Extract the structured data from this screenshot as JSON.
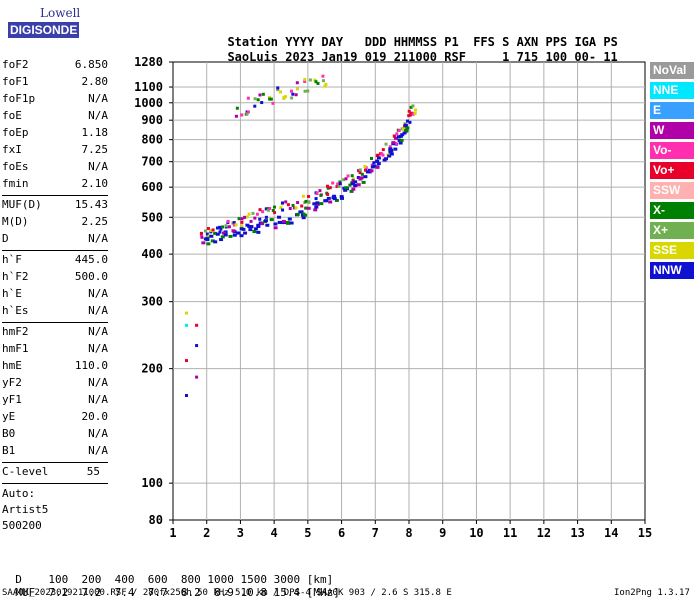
{
  "logo": {
    "line1": "Lowell",
    "line2": "DIGISONDE"
  },
  "header": {
    "labels": [
      "Station",
      "YYYY",
      "DAY",
      "DDD",
      "HHMMSS",
      "P1",
      "FFS",
      "S",
      "AXN",
      "PPS",
      "IGA",
      "PS"
    ],
    "values": [
      "SaoLuis",
      "2023",
      "Jan19",
      "019",
      "211000",
      "RSF",
      "1",
      "715",
      "100",
      "00-",
      "11"
    ]
  },
  "params_group1": [
    {
      "k": "foF2",
      "v": "6.850"
    },
    {
      "k": "foF1",
      "v": "2.80"
    },
    {
      "k": "foF1p",
      "v": "N/A"
    },
    {
      "k": "foE",
      "v": "N/A"
    },
    {
      "k": "foEp",
      "v": "1.18"
    },
    {
      "k": "fxI",
      "v": "7.25"
    },
    {
      "k": "foEs",
      "v": "N/A"
    },
    {
      "k": "fmin",
      "v": "2.10"
    }
  ],
  "params_group2": [
    {
      "k": "MUF(D)",
      "v": "15.43"
    },
    {
      "k": "M(D)",
      "v": "2.25"
    },
    {
      "k": "D",
      "v": "N/A"
    }
  ],
  "params_group3": [
    {
      "k": "h`F",
      "v": "445.0"
    },
    {
      "k": "h`F2",
      "v": "500.0"
    },
    {
      "k": "h`E",
      "v": "N/A"
    },
    {
      "k": "h`Es",
      "v": "N/A"
    }
  ],
  "params_group4": [
    {
      "k": "hmF2",
      "v": "N/A"
    },
    {
      "k": "hmF1",
      "v": "N/A"
    },
    {
      "k": "hmE",
      "v": "110.0"
    },
    {
      "k": "yF2",
      "v": "N/A"
    },
    {
      "k": "yF1",
      "v": "N/A"
    },
    {
      "k": "yE",
      "v": "20.0"
    },
    {
      "k": "B0",
      "v": "N/A"
    },
    {
      "k": "B1",
      "v": "N/A"
    }
  ],
  "clevel": {
    "k": "C-level",
    "v": "55"
  },
  "auto": [
    "Auto:",
    "Artist5",
    "500200"
  ],
  "legend": [
    {
      "label": "NoVal",
      "color": "#9a9a9a"
    },
    {
      "label": "NNE",
      "color": "#00e8ff"
    },
    {
      "label": "E",
      "color": "#3aa0ff"
    },
    {
      "label": "W",
      "color": "#b000a8"
    },
    {
      "label": "Vo-",
      "color": "#ff2fb0"
    },
    {
      "label": "Vo+",
      "color": "#e8002a"
    },
    {
      "label": "SSW",
      "color": "#ffb0b0"
    },
    {
      "label": "X-",
      "color": "#008000"
    },
    {
      "label": "X+",
      "color": "#70b050"
    },
    {
      "label": "SSE",
      "color": "#d8d800"
    },
    {
      "label": "NNW",
      "color": "#1010d0"
    }
  ],
  "bottom_table": {
    "row1_label": "D",
    "row1_values": [
      "100",
      "200",
      "400",
      "600",
      "800",
      "1000",
      "1500",
      "3000"
    ],
    "row1_unit": "[km]",
    "row2_label": "MUF",
    "row2_values": [
      "7.2",
      "7.2",
      "7.4",
      "7.7",
      "8.2",
      "8.9",
      "10.8",
      "15.4"
    ],
    "row2_unit": "[MHz]"
  },
  "footer_left": "SAA0K_2023019211000.RSF / 280fx256h 50 kHz 5.0 km / DPS-4 SAA0K 903 / 2.6 S 315.8 E",
  "footer_right": "Ion2Png 1.3.17",
  "chart_data": {
    "type": "scatter",
    "title": "",
    "xlabel": "",
    "ylabel": "",
    "xlim": [
      1,
      15
    ],
    "ylim": [
      80,
      1280
    ],
    "y_scale": "log",
    "grid": true,
    "xticks": [
      "1",
      "2",
      "3",
      "4",
      "5",
      "6",
      "7",
      "8",
      "9",
      "10",
      "11",
      "12",
      "13",
      "14",
      "15"
    ],
    "yticks": [
      80,
      100,
      200,
      300,
      400,
      500,
      600,
      700,
      800,
      900,
      1000,
      1100,
      1280
    ],
    "traces": [
      {
        "name": "F-trace O",
        "points": [
          [
            1.8,
            455
          ],
          [
            2.2,
            465
          ],
          [
            2.6,
            480
          ],
          [
            3.0,
            495
          ],
          [
            3.5,
            510
          ],
          [
            4.0,
            525
          ],
          [
            4.5,
            545
          ],
          [
            5.0,
            565
          ],
          [
            5.5,
            590
          ],
          [
            6.0,
            620
          ],
          [
            6.4,
            650
          ],
          [
            6.8,
            690
          ],
          [
            7.2,
            740
          ],
          [
            7.5,
            790
          ],
          [
            7.8,
            860
          ],
          [
            8.0,
            930
          ],
          [
            8.1,
            990
          ]
        ]
      },
      {
        "name": "F-trace X",
        "points": [
          [
            1.9,
            440
          ],
          [
            2.3,
            445
          ],
          [
            2.8,
            460
          ],
          [
            3.2,
            470
          ],
          [
            3.7,
            480
          ],
          [
            4.2,
            495
          ],
          [
            4.7,
            510
          ],
          [
            5.2,
            535
          ],
          [
            5.7,
            565
          ],
          [
            6.2,
            600
          ],
          [
            6.6,
            640
          ],
          [
            7.0,
            690
          ],
          [
            7.4,
            750
          ],
          [
            7.7,
            820
          ],
          [
            7.9,
            880
          ]
        ]
      },
      {
        "name": "Multiple hop",
        "points": [
          [
            2.9,
            950
          ],
          [
            3.2,
            990
          ],
          [
            3.6,
            1020
          ],
          [
            4.0,
            1050
          ],
          [
            4.4,
            1080
          ],
          [
            4.8,
            1110
          ],
          [
            5.2,
            1140
          ],
          [
            5.6,
            1170
          ]
        ]
      },
      {
        "name": "Low scatter",
        "points": [
          [
            1.4,
            170
          ],
          [
            1.4,
            210
          ],
          [
            1.4,
            260
          ],
          [
            1.4,
            280
          ],
          [
            1.7,
            190
          ],
          [
            1.7,
            230
          ],
          [
            1.7,
            260
          ]
        ]
      }
    ]
  }
}
